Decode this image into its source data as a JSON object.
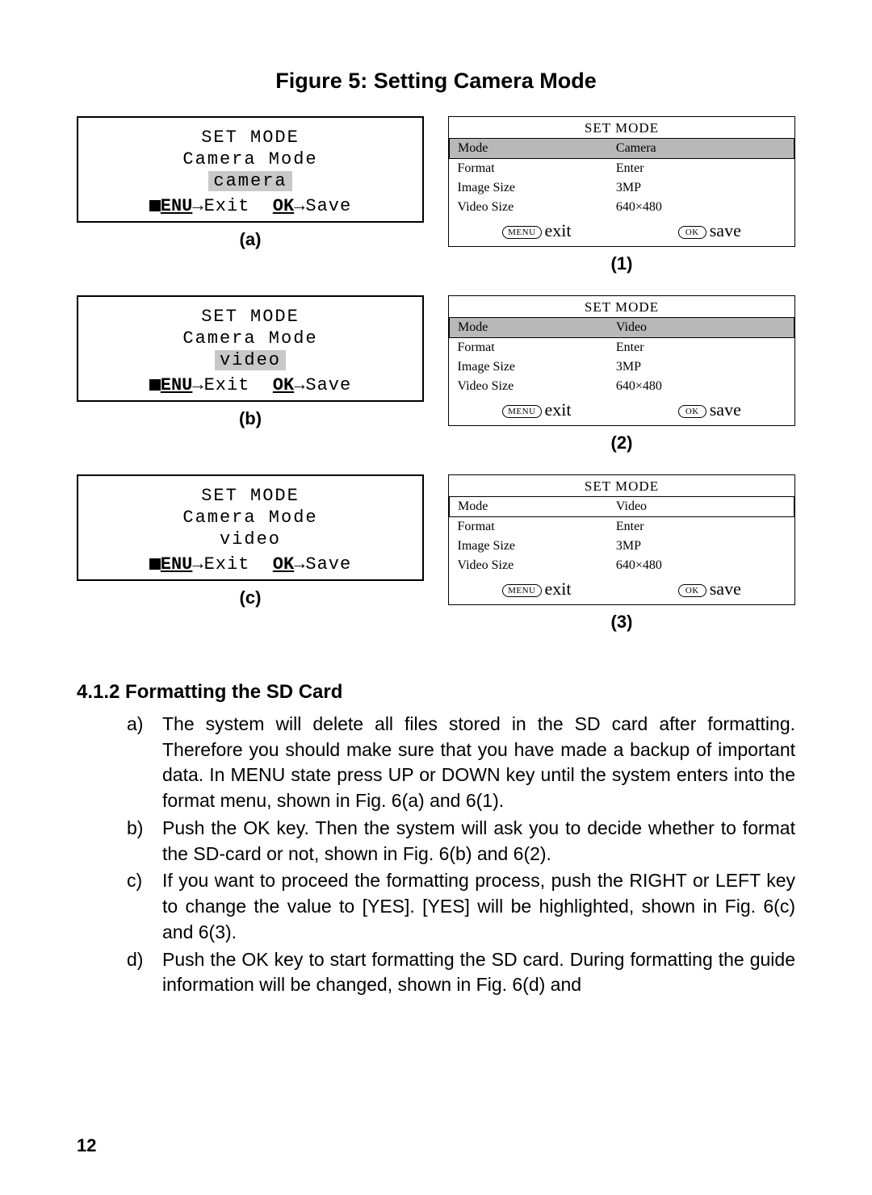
{
  "figure_title": "Figure 5: Setting Camera Mode",
  "left_panels": [
    {
      "title": "SET MODE",
      "subtitle": "Camera Mode",
      "value": "camera",
      "value_highlight": true,
      "menu_label": "ENU",
      "exit_label": "Exit",
      "ok_label": "OK",
      "save_label": "Save",
      "caption": "(a)"
    },
    {
      "title": "SET MODE",
      "subtitle": "Camera Mode",
      "value": "video",
      "value_highlight": true,
      "menu_label": "ENU",
      "exit_label": "Exit",
      "ok_label": "OK",
      "save_label": "Save",
      "caption": "(b)"
    },
    {
      "title": "SET MODE",
      "subtitle": "Camera Mode",
      "value": "video",
      "value_highlight": false,
      "menu_label": "ENU",
      "exit_label": "Exit",
      "ok_label": "OK",
      "save_label": "Save",
      "caption": "(c)"
    }
  ],
  "right_panels": [
    {
      "title": "SET MODE",
      "rows": [
        {
          "label": "Mode",
          "value": "Camera",
          "highlight": true,
          "boxed": true
        },
        {
          "label": "Format",
          "value": "Enter",
          "highlight": false,
          "boxed": false
        },
        {
          "label": "Image Size",
          "value": "3MP",
          "highlight": false,
          "boxed": false
        },
        {
          "label": "Video Size",
          "value": "640×480",
          "highlight": false,
          "boxed": false
        }
      ],
      "menu_pill": "MENU",
      "exit_label": "exit",
      "ok_pill": "OK",
      "save_label": "save",
      "caption": "(1)"
    },
    {
      "title": "SET MODE",
      "rows": [
        {
          "label": "Mode",
          "value": "Video",
          "highlight": true,
          "boxed": true
        },
        {
          "label": "Format",
          "value": "Enter",
          "highlight": false,
          "boxed": false
        },
        {
          "label": "Image Size",
          "value": "3MP",
          "highlight": false,
          "boxed": false
        },
        {
          "label": "Video Size",
          "value": "640×480",
          "highlight": false,
          "boxed": false
        }
      ],
      "menu_pill": "MENU",
      "exit_label": "exit",
      "ok_pill": "OK",
      "save_label": "save",
      "caption": "(2)"
    },
    {
      "title": "SET MODE",
      "rows": [
        {
          "label": "Mode",
          "value": "Video",
          "highlight": false,
          "boxed": true
        },
        {
          "label": "Format",
          "value": "Enter",
          "highlight": false,
          "boxed": false
        },
        {
          "label": "Image Size",
          "value": "3MP",
          "highlight": false,
          "boxed": false
        },
        {
          "label": "Video Size",
          "value": "640×480",
          "highlight": false,
          "boxed": false
        }
      ],
      "menu_pill": "MENU",
      "exit_label": "exit",
      "ok_pill": "OK",
      "save_label": "save",
      "caption": "(3)"
    }
  ],
  "section_heading": "4.1.2 Formatting the SD Card",
  "body_items": [
    {
      "marker": "a)",
      "text": "The system will delete all files stored in the SD card after formatting. Therefore you should make sure that you have made a backup of important data. In MENU state press UP or DOWN key until the system enters into the format menu, shown in Fig. 6(a) and 6(1)."
    },
    {
      "marker": "b)",
      "text": "Push the OK key. Then the system will ask you to decide whether to format the SD-card or not, shown in Fig. 6(b) and 6(2)."
    },
    {
      "marker": "c)",
      "text": "If you want to proceed the formatting process, push the RIGHT or LEFT key to change the value to [YES].  [YES] will be highlighted, shown in Fig. 6(c) and 6(3)."
    },
    {
      "marker": "d)",
      "text": "Push the OK key to start formatting the SD card. During formatting the guide information will be changed, shown in Fig. 6(d) and"
    }
  ],
  "page_number": "12",
  "colors": {
    "highlight_bg": "#c8c8c8",
    "border": "#000000",
    "text": "#000000",
    "background": "#ffffff"
  }
}
